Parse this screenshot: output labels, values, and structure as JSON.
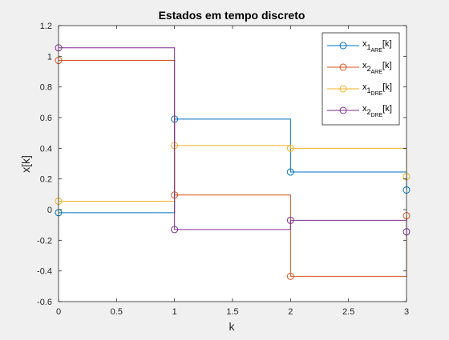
{
  "chart_data": {
    "type": "line",
    "subtype": "stairs",
    "title": "Estados em tempo discreto",
    "xlabel": "k",
    "ylabel": "x[k]",
    "xlim": [
      0,
      3
    ],
    "ylim": [
      -0.6,
      1.2
    ],
    "x_ticks": [
      "0",
      "0.5",
      "1",
      "1.5",
      "2",
      "2.5",
      "3"
    ],
    "y_ticks": [
      "-0.6",
      "-0.4",
      "-0.2",
      "0",
      "0.2",
      "0.4",
      "0.6",
      "0.8",
      "1",
      "1.2"
    ],
    "x": [
      0,
      1,
      2,
      3
    ],
    "grid": false,
    "legend_position": "top-right",
    "series": [
      {
        "label_main": "x",
        "label_sub": "1",
        "label_subsub": "ARE",
        "label_tail": "[k]",
        "color": "#0072BD",
        "values": [
          -0.02,
          0.59,
          0.245,
          0.128
        ]
      },
      {
        "label_main": "x",
        "label_sub": "2",
        "label_subsub": "ARE",
        "label_tail": "[k]",
        "color": "#D95319",
        "values": [
          0.973,
          0.095,
          -0.435,
          -0.04
        ]
      },
      {
        "label_main": "x",
        "label_sub": "1",
        "label_subsub": "DRE",
        "label_tail": "[k]",
        "color": "#EDB120",
        "values": [
          0.055,
          0.418,
          0.4,
          0.215
        ]
      },
      {
        "label_main": "x",
        "label_sub": "2",
        "label_subsub": "DRE",
        "label_tail": "[k]",
        "color": "#7E2F8E",
        "values": [
          1.055,
          -0.13,
          -0.07,
          -0.145
        ]
      }
    ]
  }
}
